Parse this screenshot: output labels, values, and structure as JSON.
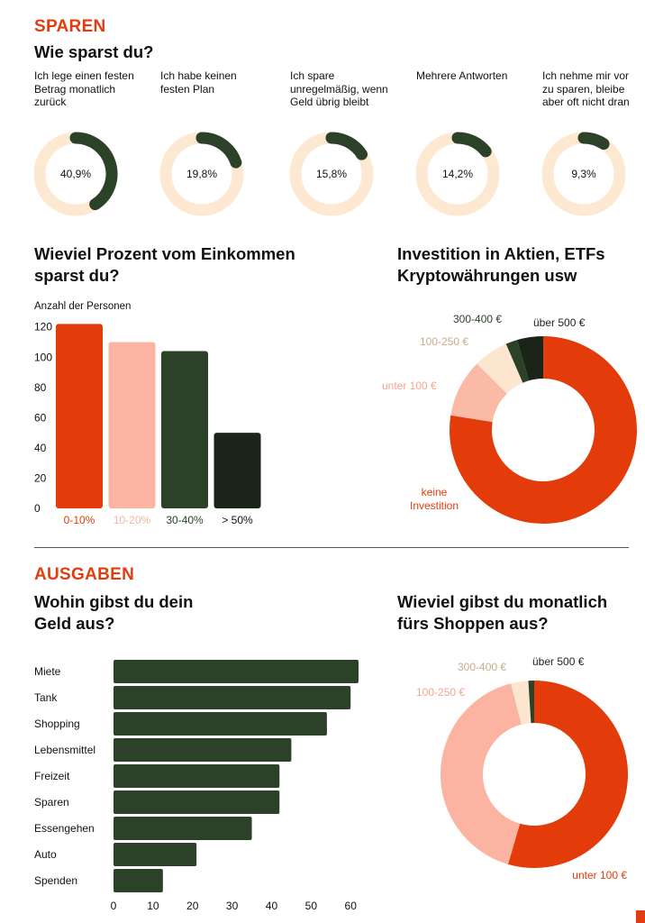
{
  "sparen": {
    "section_label": "SPAREN",
    "title": "Wie sparst du?",
    "ring_track_color": "#fde9d2",
    "ring_fill_color": "#2b4128",
    "rings": [
      {
        "caption": "Ich lege einen festen Betrag monatlich zurück",
        "value": 40.9,
        "label": "40,9%"
      },
      {
        "caption": "Ich habe keinen festen Plan",
        "value": 19.8,
        "label": "19,8%"
      },
      {
        "caption": "Ich spare unregelmäßig, wenn Geld übrig bleibt",
        "value": 15.8,
        "label": "15,8%"
      },
      {
        "caption": "Mehrere Antworten",
        "value": 14.2,
        "label": "14,2%"
      },
      {
        "caption": "Ich nehme mir vor zu sparen, bleibe aber oft nicht dran",
        "value": 9.3,
        "label": "9,3%"
      }
    ]
  },
  "einkommen": {
    "title": "Wieviel Prozent vom Einkommen sparst du?"
  },
  "investition": {
    "title": "Investition in Aktien, ETFs Kryptowährungen usw"
  },
  "ausgaben": {
    "section_label": "AUSGABEN",
    "title": "Wohin gibst du dein Geld aus?"
  },
  "shopping": {
    "title": "Wieviel gibst du monatlich fürs Shoppen aus?"
  },
  "chart_data": [
    {
      "id": "einkommen",
      "type": "bar",
      "title": "Wieviel Prozent vom Einkommen sparst du?",
      "ylabel": "Anzahl der Personen",
      "categories": [
        "0-10%",
        "10-20%",
        "30-40%",
        "> 50%"
      ],
      "values": [
        122,
        110,
        104,
        50
      ],
      "colors": [
        "#e33c0a",
        "#fbb4a1",
        "#2b4128",
        "#1a2418"
      ],
      "yticks": [
        0,
        20,
        40,
        60,
        80,
        100,
        120
      ],
      "ylim": [
        0,
        124
      ],
      "grid": false
    },
    {
      "id": "investition",
      "type": "pie",
      "donut": true,
      "title": "Investition in Aktien, ETFs Kryptowährungen usw",
      "labels": [
        "keine Investition",
        "unter 100 €",
        "100-250 €",
        "300-400 €",
        "über 500 €"
      ],
      "values": [
        77.5,
        10,
        6,
        2,
        4.5
      ],
      "colors": [
        "#e33c0a",
        "#fbbaa6",
        "#fde6cf",
        "#2b4128",
        "#1a2418"
      ],
      "label_colors": [
        "#e33c0a",
        "#f7a58d",
        "#c8ab8c",
        "#2b4128",
        "#1a2418"
      ]
    },
    {
      "id": "ausgaben",
      "type": "bar",
      "orientation": "horizontal",
      "title": "Wohin gibst du dein Geld aus?",
      "categories": [
        "Miete",
        "Tank",
        "Shopping",
        "Lebensmittel",
        "Freizeit",
        "Sparen",
        "Essengehen",
        "Auto",
        "Spenden"
      ],
      "values": [
        62,
        60,
        54,
        45,
        42,
        42,
        35,
        21,
        12.5
      ],
      "color": "#2b4128",
      "xticks": [
        0,
        10,
        20,
        30,
        40,
        50,
        60
      ],
      "xlim": [
        0,
        62
      ],
      "grid": false
    },
    {
      "id": "shopping",
      "type": "pie",
      "donut": true,
      "title": "Wieviel gibst du monatlich fürs Shoppen aus?",
      "labels": [
        "unter 100 €",
        "100-250 €",
        "300-400 €",
        "über 500 €"
      ],
      "values": [
        54.5,
        41.5,
        3,
        1
      ],
      "colors": [
        "#e33c0a",
        "#fbb4a1",
        "#fde6cf",
        "#2b4128"
      ],
      "label_colors": [
        "#e33c0a",
        "#f7a58d",
        "#c8ab8c",
        "#1a2418"
      ]
    }
  ]
}
